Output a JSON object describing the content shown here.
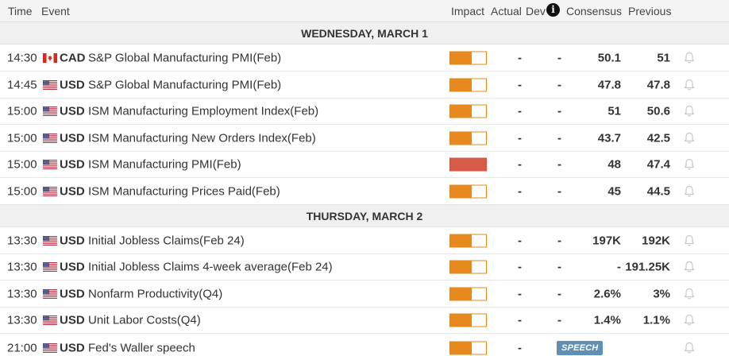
{
  "header": {
    "time": "Time",
    "event": "Event",
    "impact": "Impact",
    "actual": "Actual",
    "dev": "Dev",
    "consensus": "Consensus",
    "previous": "Previous",
    "info_icon": "info-icon"
  },
  "days": [
    {
      "label": "WEDNESDAY, MARCH 1",
      "events": [
        {
          "time": "14:30",
          "flag": "canada",
          "currency": "CAD",
          "event": "S&P Global Manufacturing PMI(Feb)",
          "impact": "medium",
          "impact_level": 0.6,
          "actual": "-",
          "dev": "-",
          "consensus": "50.1",
          "previous": "51"
        },
        {
          "time": "14:45",
          "flag": "usa",
          "currency": "USD",
          "event": "S&P Global Manufacturing PMI(Feb)",
          "impact": "medium",
          "impact_level": 0.6,
          "actual": "-",
          "dev": "-",
          "consensus": "47.8",
          "previous": "47.8"
        },
        {
          "time": "15:00",
          "flag": "usa",
          "currency": "USD",
          "event": "ISM Manufacturing Employment Index(Feb)",
          "impact": "medium",
          "impact_level": 0.6,
          "actual": "-",
          "dev": "-",
          "consensus": "51",
          "previous": "50.6"
        },
        {
          "time": "15:00",
          "flag": "usa",
          "currency": "USD",
          "event": "ISM Manufacturing New Orders Index(Feb)",
          "impact": "medium",
          "impact_level": 0.6,
          "actual": "-",
          "dev": "-",
          "consensus": "43.7",
          "previous": "42.5"
        },
        {
          "time": "15:00",
          "flag": "usa",
          "currency": "USD",
          "event": "ISM Manufacturing PMI(Feb)",
          "impact": "high",
          "impact_level": 1.0,
          "actual": "-",
          "dev": "-",
          "consensus": "48",
          "previous": "47.4"
        },
        {
          "time": "15:00",
          "flag": "usa",
          "currency": "USD",
          "event": "ISM Manufacturing Prices Paid(Feb)",
          "impact": "medium",
          "impact_level": 0.6,
          "actual": "-",
          "dev": "-",
          "consensus": "45",
          "previous": "44.5"
        }
      ]
    },
    {
      "label": "THURSDAY, MARCH 2",
      "events": [
        {
          "time": "13:30",
          "flag": "usa",
          "currency": "USD",
          "event": "Initial Jobless Claims(Feb 24)",
          "impact": "medium",
          "impact_level": 0.6,
          "actual": "-",
          "dev": "-",
          "consensus": "197K",
          "previous": "192K"
        },
        {
          "time": "13:30",
          "flag": "usa",
          "currency": "USD",
          "event": "Initial Jobless Claims 4-week average(Feb 24)",
          "impact": "medium",
          "impact_level": 0.6,
          "actual": "-",
          "dev": "-",
          "consensus": "-",
          "previous": "191.25K"
        },
        {
          "time": "13:30",
          "flag": "usa",
          "currency": "USD",
          "event": "Nonfarm Productivity(Q4)",
          "impact": "medium",
          "impact_level": 0.6,
          "actual": "-",
          "dev": "-",
          "consensus": "2.6%",
          "previous": "3%"
        },
        {
          "time": "13:30",
          "flag": "usa",
          "currency": "USD",
          "event": "Unit Labor Costs(Q4)",
          "impact": "medium",
          "impact_level": 0.6,
          "actual": "-",
          "dev": "-",
          "consensus": "1.4%",
          "previous": "1.1%"
        },
        {
          "time": "21:00",
          "flag": "usa",
          "currency": "USD",
          "event": "Fed's Waller speech",
          "impact": "medium",
          "impact_level": 0.6,
          "actual": "-",
          "badge": "SPEECH"
        }
      ]
    }
  ],
  "colors": {
    "impact_medium": "#e8891f",
    "impact_high": "#d65a48",
    "speech_badge": "#5f8fb4"
  }
}
